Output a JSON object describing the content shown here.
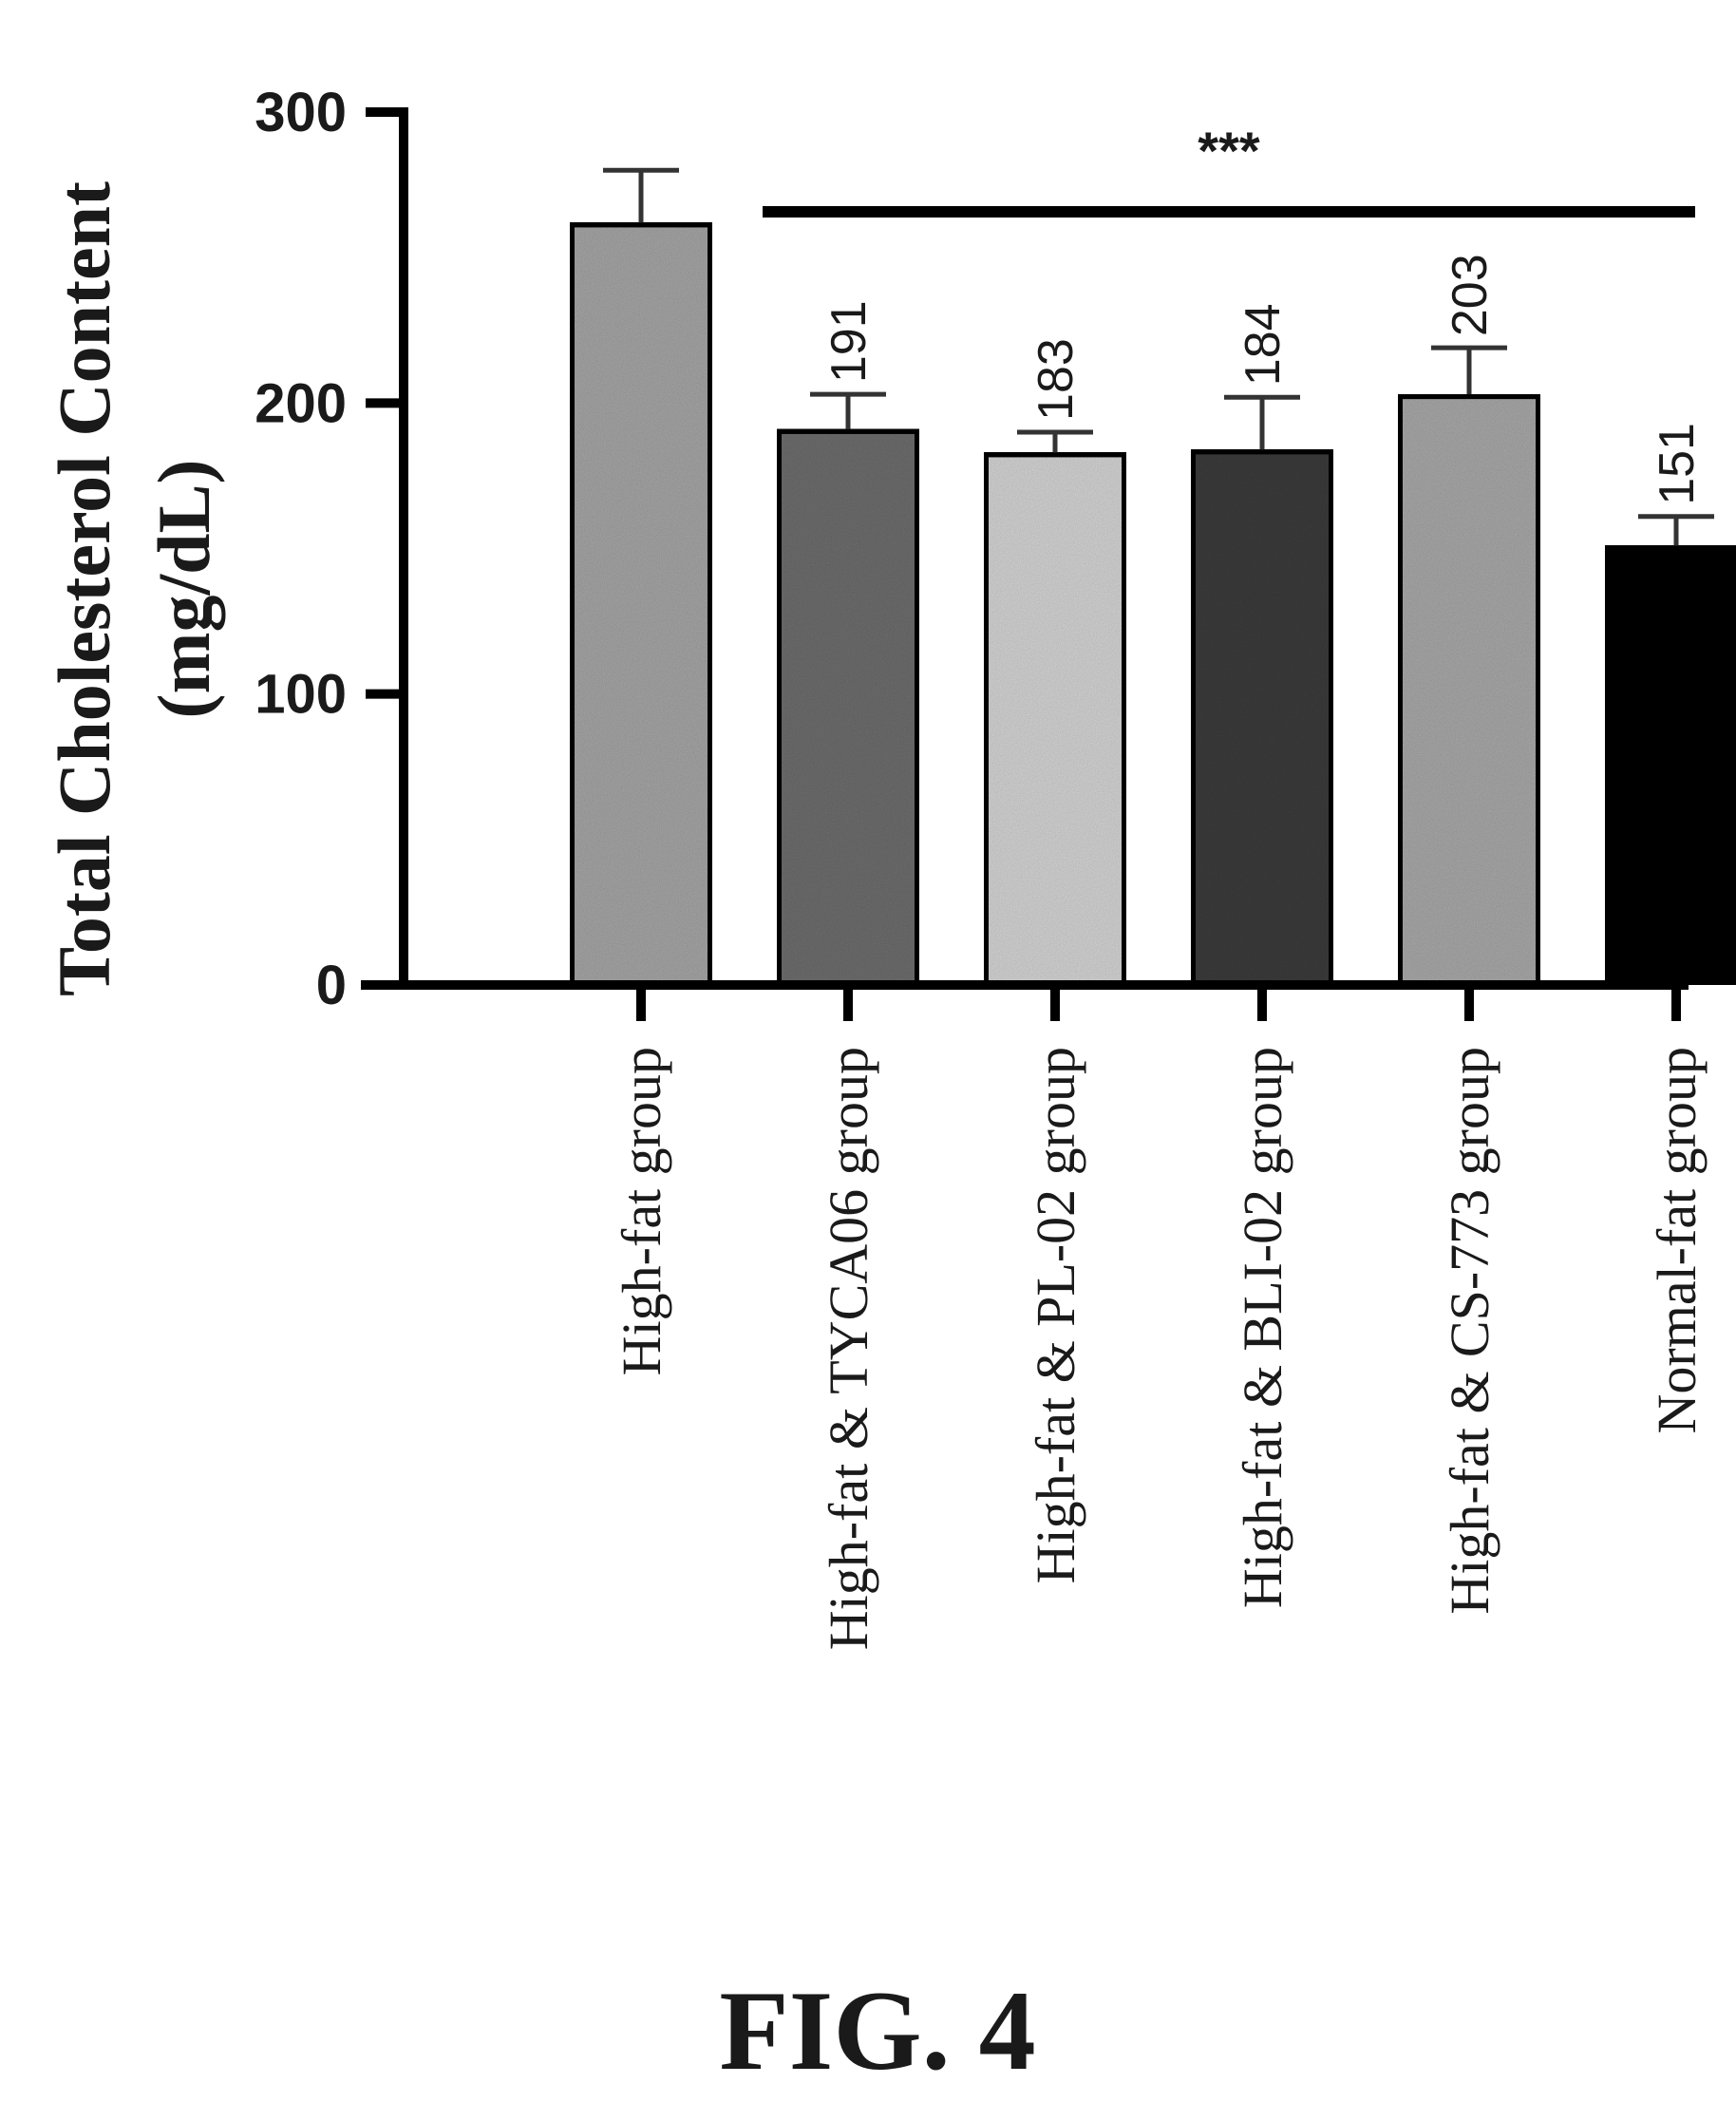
{
  "chart_data": {
    "type": "bar",
    "ylabel_line1": "Total Cholesterol Content",
    "ylabel_line2": "(mg/dL)",
    "ylim": [
      0,
      300
    ],
    "yticks": [
      "0",
      "100",
      "200",
      "300"
    ],
    "categories": [
      "High-fat group",
      "High-fat & TYCA06 group",
      "High-fat & PL-02 group",
      "High-fat & BLI-02 group",
      "High-fat & CS-773 group",
      "Normal-fat group"
    ],
    "values": [
      262,
      191,
      183,
      184,
      203,
      151
    ],
    "errors": [
      18,
      12,
      7,
      18,
      16,
      10
    ],
    "value_labels": [
      "",
      "191",
      "183",
      "184",
      "203",
      "151"
    ],
    "bar_colors": [
      "#a6a6a6",
      "#6e6e6e",
      "#d4d4d4",
      "#3c3c3c",
      "#a9a9a9",
      "#000000"
    ],
    "significance": {
      "label": "***",
      "from_index": 1,
      "to_index": 5
    }
  },
  "figure_label": "FIG. 4"
}
